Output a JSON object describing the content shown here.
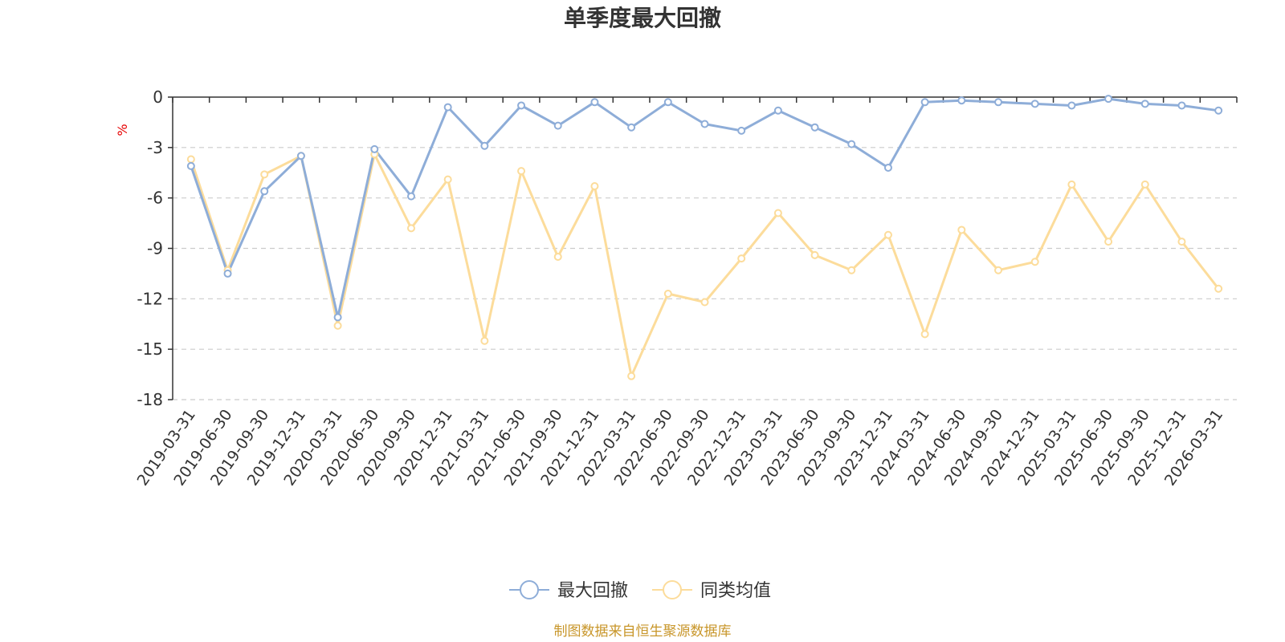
{
  "chart_data": {
    "type": "line",
    "title": "单季度最大回撤",
    "ylabel": "%",
    "ylim": [
      -18,
      0
    ],
    "yticks": [
      0,
      -3,
      -6,
      -9,
      -12,
      -15,
      -18
    ],
    "grid": true,
    "legend_position": "bottom",
    "categories": [
      "2019-03-31",
      "2019-06-30",
      "2019-09-30",
      "2019-12-31",
      "2020-03-31",
      "2020-06-30",
      "2020-09-30",
      "2020-12-31",
      "2021-03-31",
      "2021-06-30",
      "2021-09-30",
      "2021-12-31",
      "2022-03-31",
      "2022-06-30",
      "2022-09-30",
      "2022-12-31",
      "2023-03-31",
      "2023-06-30",
      "2023-09-30",
      "2023-12-31",
      "2024-03-31",
      "2024-06-30",
      "2024-09-30",
      "2024-12-31",
      "2025-03-31",
      "2025-06-30",
      "2025-09-30",
      "2025-12-31",
      "2026-03-31"
    ],
    "series": [
      {
        "name": "最大回撤",
        "color": "#8eadd8",
        "values": [
          -4.1,
          -10.5,
          -5.6,
          -3.5,
          -13.1,
          -3.1,
          -5.9,
          -0.6,
          -2.9,
          -0.5,
          -1.7,
          -0.3,
          -1.8,
          -0.3,
          -1.6,
          -2.0,
          -0.8,
          -1.8,
          -2.8,
          -4.2,
          -0.3,
          -0.2,
          -0.3,
          -0.4,
          -0.5,
          -0.1,
          -0.4,
          -0.5,
          -0.8
        ]
      },
      {
        "name": "同类均值",
        "color": "#fcdc9b",
        "values": [
          -3.7,
          -10.3,
          -4.6,
          -3.5,
          -13.6,
          -3.4,
          -7.8,
          -4.9,
          -14.5,
          -4.4,
          -9.5,
          -5.3,
          -16.6,
          -11.7,
          -12.2,
          -9.6,
          -6.9,
          -9.4,
          -10.3,
          -8.2,
          -14.1,
          -7.9,
          -10.3,
          -9.8,
          -5.2,
          -8.6,
          -5.2,
          -8.6,
          -11.4
        ]
      }
    ]
  },
  "source_note": "制图数据来自恒生聚源数据库"
}
